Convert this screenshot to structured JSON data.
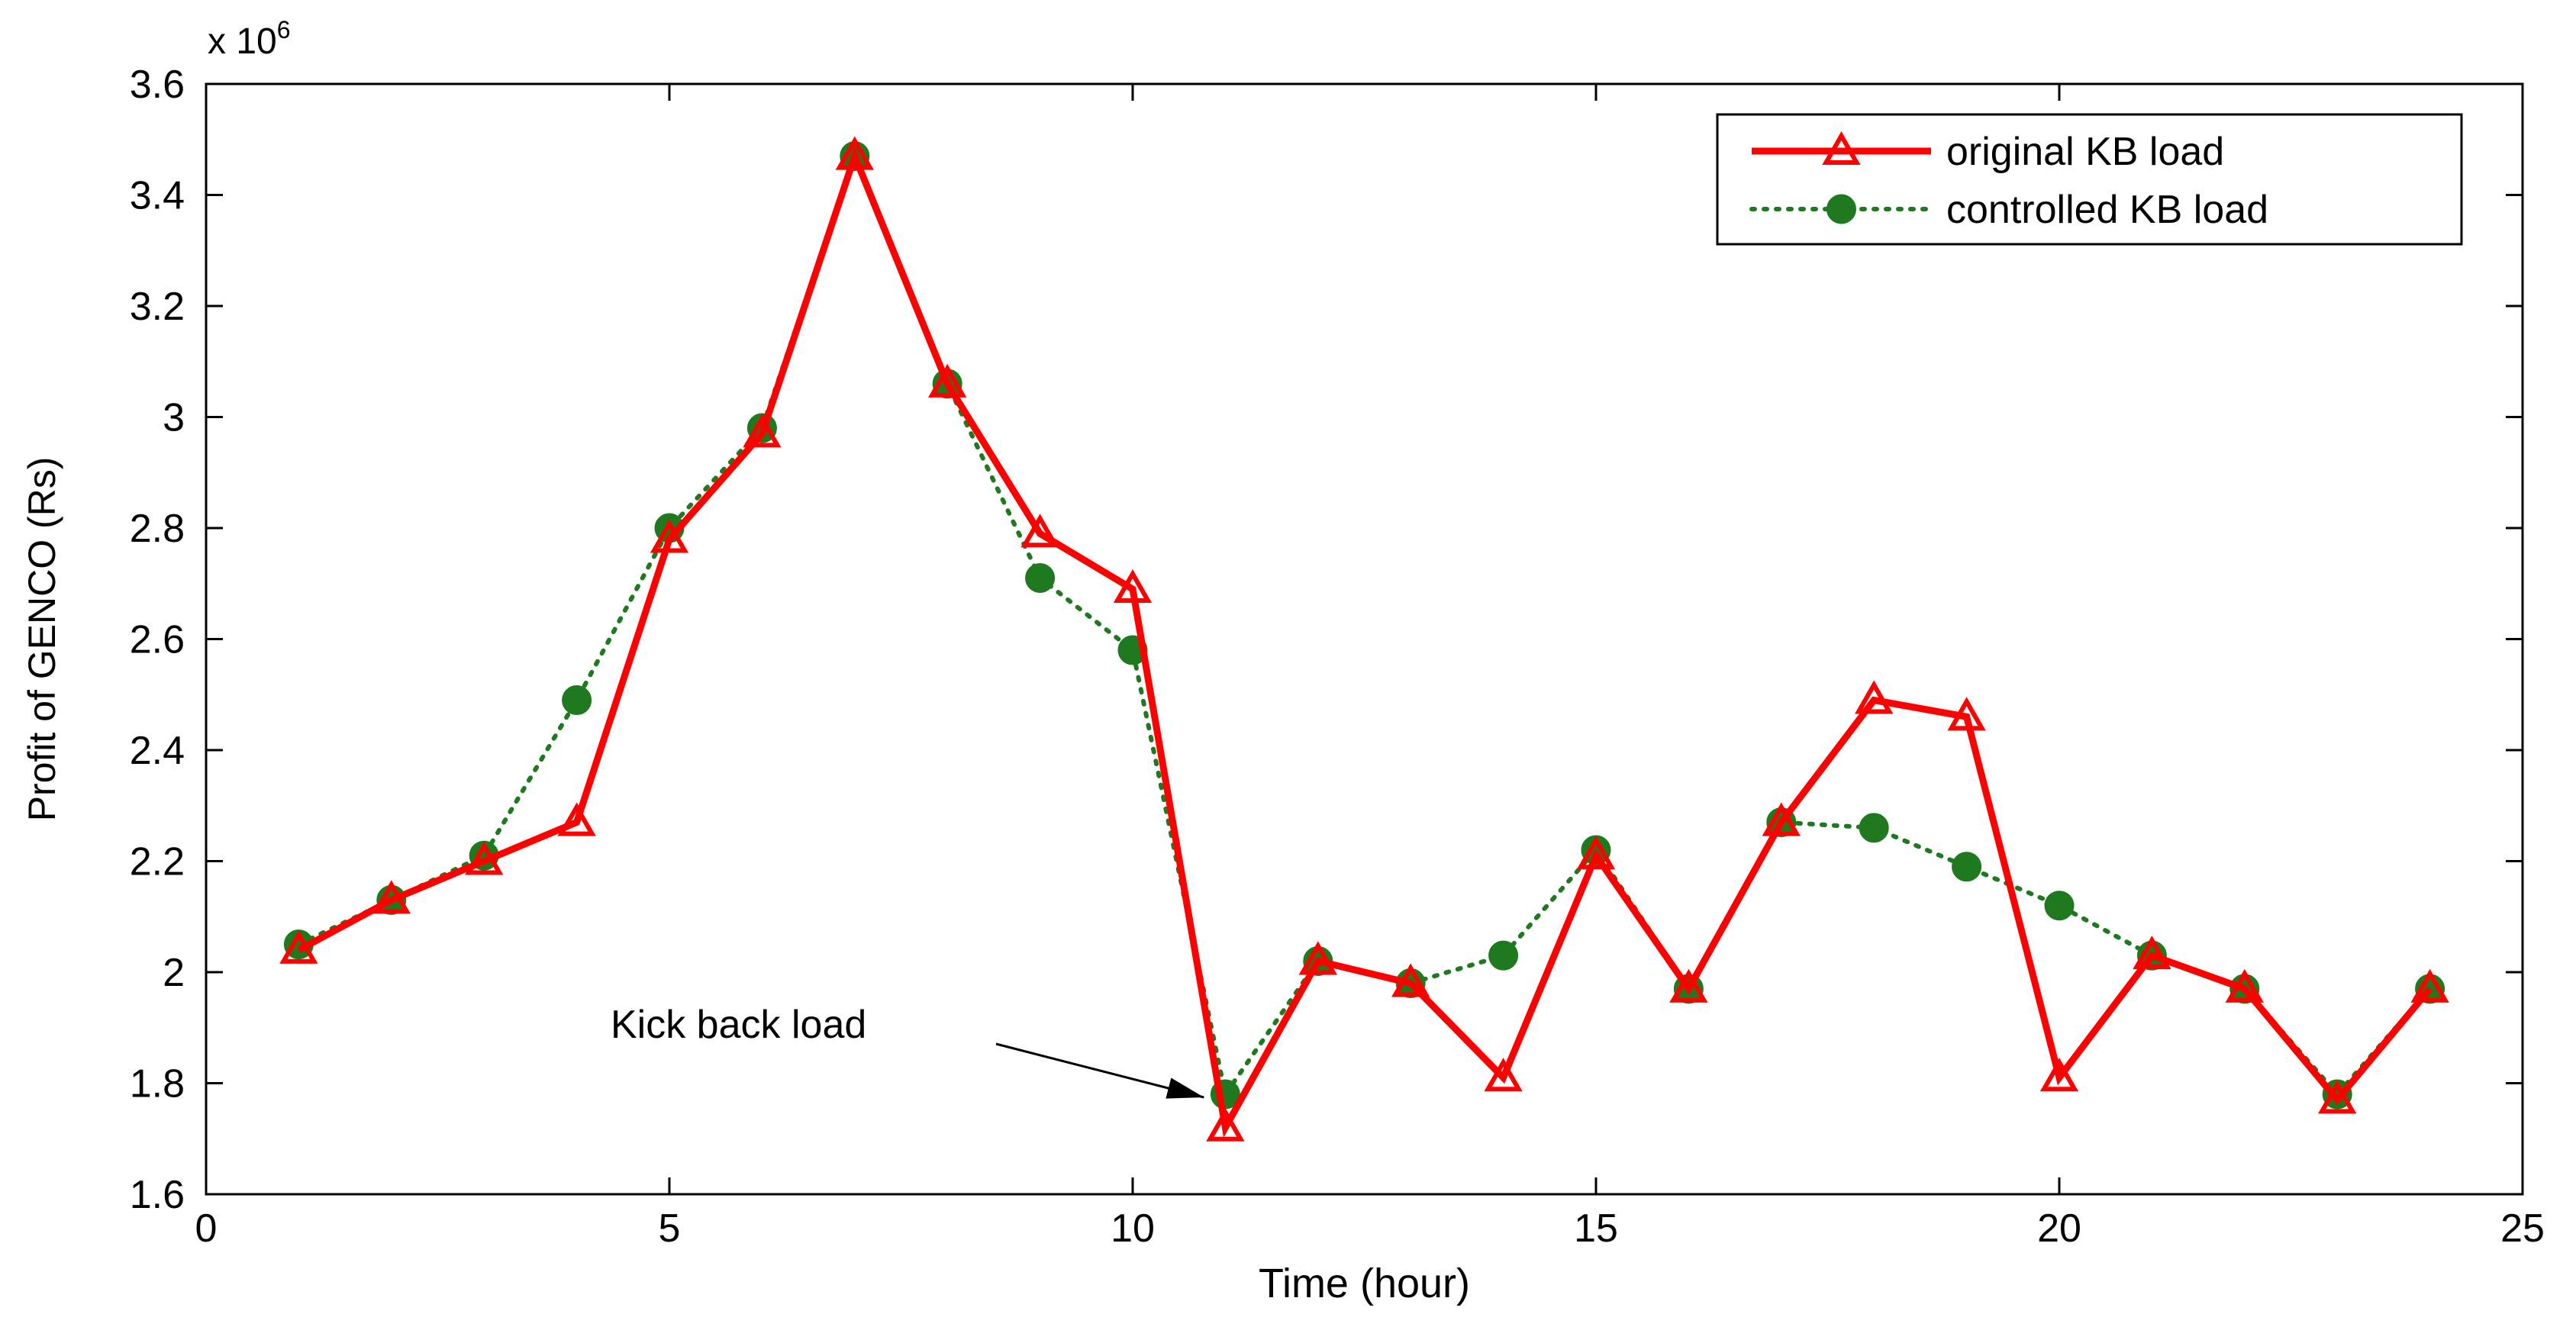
{
  "chart_data": {
    "type": "line",
    "title": "",
    "xlabel": "Time (hour)",
    "ylabel": "Profit of GENCO (Rs)",
    "y_multiplier_label": "x 10",
    "y_multiplier_exp": "6",
    "xlim": [
      0,
      25
    ],
    "ylim": [
      1.6,
      3.6
    ],
    "xticks": [
      0,
      5,
      10,
      15,
      20,
      25
    ],
    "xtick_labels": [
      "0",
      "5",
      "10",
      "15",
      "20",
      "25"
    ],
    "yticks": [
      1.6,
      1.8,
      2.0,
      2.2,
      2.4,
      2.6,
      2.8,
      3.0,
      3.2,
      3.4,
      3.6
    ],
    "ytick_labels": [
      "1.6",
      "1.8",
      "2",
      "2.2",
      "2.4",
      "2.6",
      "2.8",
      "3",
      "3.2",
      "3.4",
      "3.6"
    ],
    "grid": false,
    "legend_position": "top-right",
    "x": [
      1,
      2,
      3,
      4,
      5,
      6,
      7,
      8,
      9,
      10,
      11,
      12,
      13,
      14,
      15,
      16,
      17,
      18,
      19,
      20,
      21,
      22,
      23,
      24
    ],
    "series": [
      {
        "name": "original KB load",
        "color": "#ff0000",
        "line_style": "solid",
        "marker": "triangle",
        "values": [
          2.04,
          2.13,
          2.2,
          2.27,
          2.78,
          2.97,
          3.47,
          3.06,
          2.79,
          2.69,
          1.72,
          2.02,
          1.98,
          1.81,
          2.21,
          1.97,
          2.27,
          2.49,
          2.46,
          1.81,
          2.03,
          1.97,
          1.77,
          1.97
        ]
      },
      {
        "name": "controlled KB load",
        "color": "#1f7a1f",
        "line_style": "dotted",
        "marker": "circle",
        "values": [
          2.05,
          2.13,
          2.21,
          2.49,
          2.8,
          2.98,
          3.47,
          3.06,
          2.71,
          2.58,
          1.78,
          2.02,
          1.98,
          2.03,
          2.22,
          1.97,
          2.27,
          2.26,
          2.19,
          2.12,
          2.03,
          1.97,
          1.78,
          1.97
        ]
      }
    ],
    "annotations": [
      {
        "text": "Kick back load",
        "x": 11,
        "y": 1.78
      }
    ]
  }
}
